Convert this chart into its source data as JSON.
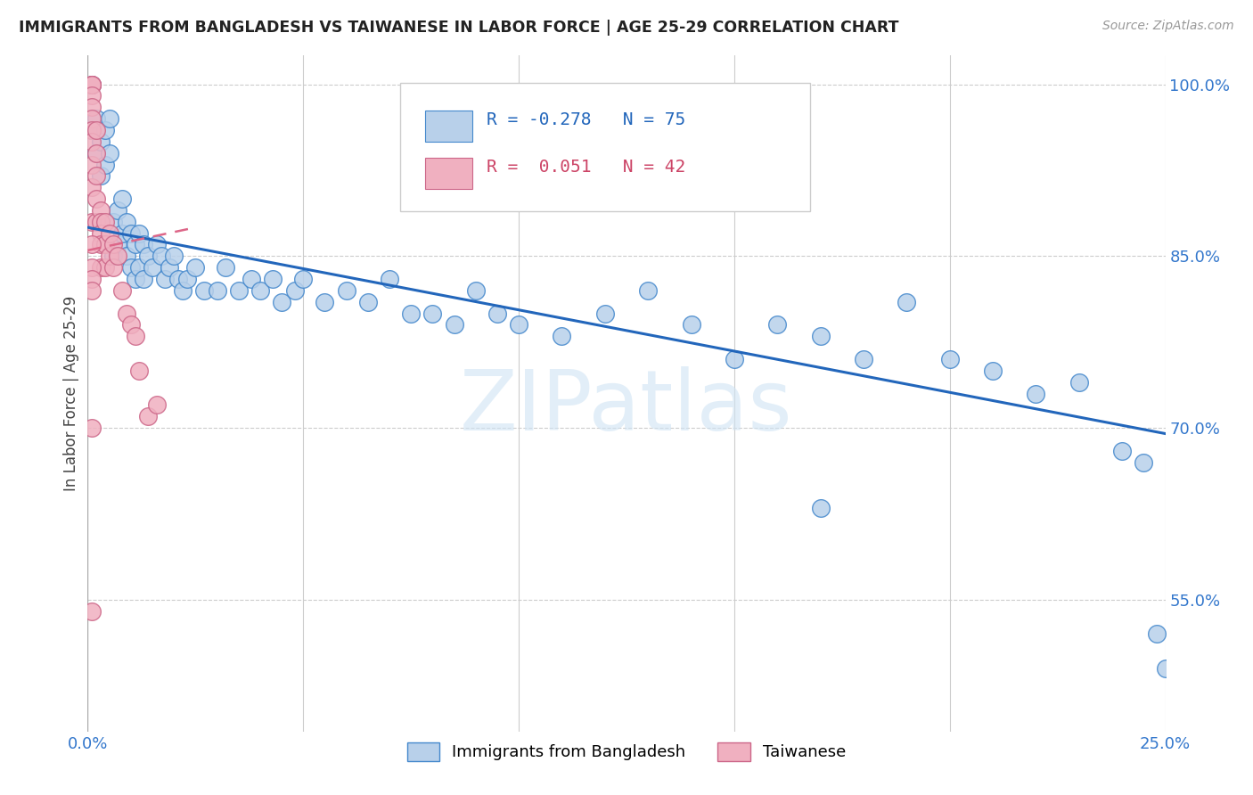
{
  "title": "IMMIGRANTS FROM BANGLADESH VS TAIWANESE IN LABOR FORCE | AGE 25-29 CORRELATION CHART",
  "source": "Source: ZipAtlas.com",
  "ylabel": "In Labor Force | Age 25-29",
  "legend_label1": "Immigrants from Bangladesh",
  "legend_label2": "Taiwanese",
  "R1": -0.278,
  "N1": 75,
  "R2": 0.051,
  "N2": 42,
  "color_blue_fill": "#b8d0ea",
  "color_blue_edge": "#4488cc",
  "color_pink_fill": "#f0b0c0",
  "color_pink_edge": "#cc6688",
  "color_blue_line": "#2266bb",
  "color_pink_line": "#dd6688",
  "xlim": [
    0.0,
    0.25
  ],
  "ylim": [
    0.435,
    1.025
  ],
  "xticks": [
    0.0,
    0.05,
    0.1,
    0.15,
    0.2,
    0.25
  ],
  "yticks": [
    0.55,
    0.7,
    0.85,
    1.0
  ],
  "watermark": "ZIPatlas",
  "blue_line_x": [
    0.0,
    0.25
  ],
  "blue_line_y": [
    0.875,
    0.695
  ],
  "pink_line_x": [
    0.0,
    0.025
  ],
  "pink_line_y": [
    0.855,
    0.875
  ],
  "blue_x": [
    0.001,
    0.001,
    0.002,
    0.002,
    0.003,
    0.003,
    0.004,
    0.004,
    0.005,
    0.005,
    0.006,
    0.006,
    0.007,
    0.007,
    0.008,
    0.008,
    0.009,
    0.009,
    0.01,
    0.01,
    0.011,
    0.011,
    0.012,
    0.012,
    0.013,
    0.013,
    0.014,
    0.015,
    0.016,
    0.017,
    0.018,
    0.019,
    0.02,
    0.021,
    0.022,
    0.023,
    0.025,
    0.027,
    0.03,
    0.032,
    0.035,
    0.038,
    0.04,
    0.043,
    0.045,
    0.048,
    0.05,
    0.055,
    0.06,
    0.065,
    0.07,
    0.075,
    0.08,
    0.085,
    0.09,
    0.095,
    0.1,
    0.11,
    0.12,
    0.13,
    0.14,
    0.15,
    0.16,
    0.17,
    0.18,
    0.19,
    0.2,
    0.21,
    0.22,
    0.23,
    0.24,
    0.245,
    0.248,
    0.25,
    0.17
  ],
  "blue_y": [
    1.0,
    0.96,
    0.97,
    0.94,
    0.95,
    0.92,
    0.96,
    0.93,
    0.97,
    0.94,
    0.88,
    0.85,
    0.89,
    0.86,
    0.9,
    0.87,
    0.88,
    0.85,
    0.87,
    0.84,
    0.86,
    0.83,
    0.87,
    0.84,
    0.86,
    0.83,
    0.85,
    0.84,
    0.86,
    0.85,
    0.83,
    0.84,
    0.85,
    0.83,
    0.82,
    0.83,
    0.84,
    0.82,
    0.82,
    0.84,
    0.82,
    0.83,
    0.82,
    0.83,
    0.81,
    0.82,
    0.83,
    0.81,
    0.82,
    0.81,
    0.83,
    0.8,
    0.8,
    0.79,
    0.82,
    0.8,
    0.79,
    0.78,
    0.8,
    0.82,
    0.79,
    0.76,
    0.79,
    0.78,
    0.76,
    0.81,
    0.76,
    0.75,
    0.73,
    0.74,
    0.68,
    0.67,
    0.52,
    0.49,
    0.63
  ],
  "pink_x": [
    0.001,
    0.001,
    0.001,
    0.001,
    0.001,
    0.001,
    0.001,
    0.001,
    0.001,
    0.001,
    0.001,
    0.002,
    0.002,
    0.002,
    0.002,
    0.002,
    0.003,
    0.003,
    0.003,
    0.003,
    0.003,
    0.004,
    0.004,
    0.004,
    0.005,
    0.005,
    0.006,
    0.006,
    0.007,
    0.008,
    0.009,
    0.01,
    0.011,
    0.012,
    0.014,
    0.016,
    0.001,
    0.001,
    0.001,
    0.001,
    0.001,
    0.001
  ],
  "pink_y": [
    1.0,
    1.0,
    1.0,
    0.99,
    0.98,
    0.97,
    0.96,
    0.95,
    0.93,
    0.91,
    0.88,
    0.96,
    0.94,
    0.92,
    0.9,
    0.88,
    0.89,
    0.88,
    0.87,
    0.86,
    0.84,
    0.88,
    0.86,
    0.84,
    0.87,
    0.85,
    0.86,
    0.84,
    0.85,
    0.82,
    0.8,
    0.79,
    0.78,
    0.75,
    0.71,
    0.72,
    0.86,
    0.84,
    0.83,
    0.82,
    0.54,
    0.7
  ]
}
